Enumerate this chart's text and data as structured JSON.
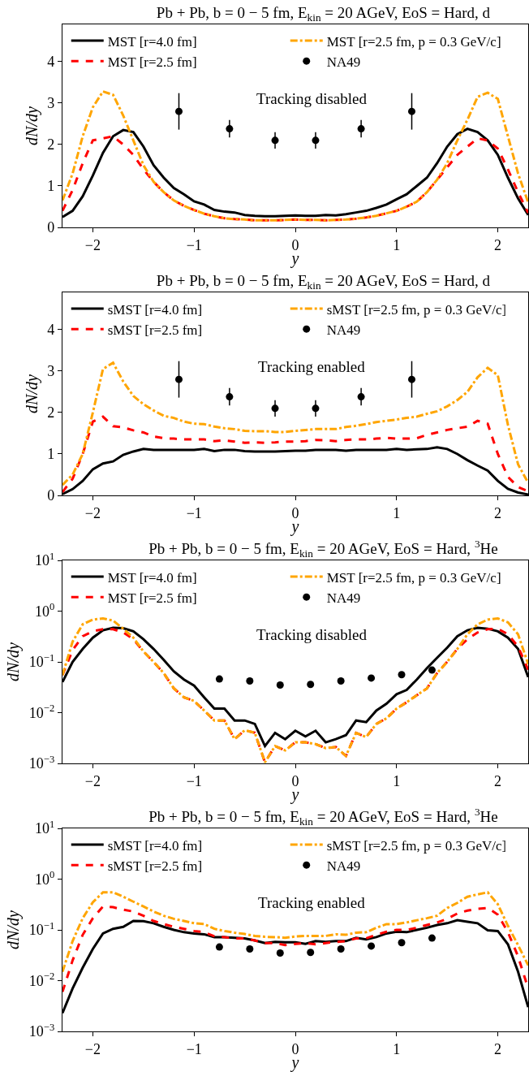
{
  "chart_data": [
    {
      "type": "line",
      "title": "Pb + Pb, b = 0 − 5 fm, E$_{kin}$ = 20 AGeV, EoS = Hard, d",
      "xlabel": "y",
      "ylabel": "dN/dy",
      "annotations": [
        "Tracking disabled"
      ],
      "legend": "top left",
      "xlim": [
        -2.3,
        2.3
      ],
      "xticks": [
        -2,
        -1,
        0,
        1,
        2
      ],
      "ylim": [
        0,
        4.9
      ],
      "yticks": [
        0,
        1,
        2,
        3,
        4
      ],
      "x": [
        -2.3,
        -2.2,
        -2.1,
        -2.0,
        -1.9,
        -1.8,
        -1.7,
        -1.6,
        -1.5,
        -1.4,
        -1.3,
        -1.2,
        -1.1,
        -1.0,
        -0.9,
        -0.8,
        -0.7,
        -0.6,
        -0.5,
        -0.4,
        -0.3,
        -0.2,
        -0.1,
        0,
        0.1,
        0.2,
        0.3,
        0.4,
        0.5,
        0.6,
        0.7,
        0.8,
        0.9,
        1.0,
        1.1,
        1.2,
        1.3,
        1.4,
        1.5,
        1.6,
        1.7,
        1.8,
        1.9,
        2.0,
        2.1,
        2.2,
        2.3
      ],
      "series": [
        {
          "name": "MST [r=4.0 fm]",
          "color": "#000000",
          "line_style": "solid",
          "values": [
            0.25,
            0.4,
            0.75,
            1.25,
            1.8,
            2.2,
            2.35,
            2.3,
            1.95,
            1.5,
            1.2,
            0.95,
            0.8,
            0.63,
            0.55,
            0.42,
            0.38,
            0.36,
            0.3,
            0.28,
            0.27,
            0.27,
            0.28,
            0.29,
            0.28,
            0.28,
            0.3,
            0.29,
            0.32,
            0.36,
            0.4,
            0.47,
            0.55,
            0.68,
            0.8,
            1.0,
            1.2,
            1.55,
            1.95,
            2.25,
            2.38,
            2.3,
            2.1,
            1.75,
            1.2,
            0.7,
            0.3
          ]
        },
        {
          "name": "MST [r=2.5 fm]",
          "color": "#ff0000",
          "line_style": "dashed",
          "values": [
            0.4,
            0.9,
            1.55,
            2.1,
            2.15,
            2.2,
            2.0,
            1.75,
            1.4,
            1.1,
            0.85,
            0.65,
            0.52,
            0.42,
            0.33,
            0.27,
            0.22,
            0.2,
            0.19,
            0.17,
            0.17,
            0.17,
            0.18,
            0.19,
            0.18,
            0.18,
            0.17,
            0.18,
            0.19,
            0.21,
            0.24,
            0.28,
            0.34,
            0.4,
            0.5,
            0.62,
            0.85,
            1.15,
            1.45,
            1.75,
            1.95,
            2.15,
            2.1,
            1.9,
            1.4,
            0.85,
            0.35
          ]
        },
        {
          "name": "MST [r=2.5 fm, p = 0.3 GeV/c]",
          "color": "#ffa500",
          "line_style": "dashdot",
          "values": [
            0.65,
            1.3,
            2.2,
            2.9,
            3.28,
            3.2,
            2.7,
            2.1,
            1.5,
            1.1,
            0.85,
            0.65,
            0.52,
            0.42,
            0.33,
            0.27,
            0.22,
            0.2,
            0.19,
            0.17,
            0.17,
            0.17,
            0.18,
            0.19,
            0.18,
            0.18,
            0.17,
            0.18,
            0.19,
            0.21,
            0.24,
            0.28,
            0.34,
            0.4,
            0.5,
            0.62,
            0.85,
            1.15,
            1.55,
            2.1,
            2.6,
            3.15,
            3.25,
            3.1,
            2.2,
            1.3,
            0.6
          ]
        },
        {
          "name": "NA49",
          "type": "scatter",
          "marker": "circle",
          "color": "#000000",
          "x": [
            -1.15,
            -0.65,
            -0.2,
            0.2,
            0.65,
            1.15
          ],
          "values": [
            2.8,
            2.38,
            2.1,
            2.1,
            2.38,
            2.8
          ],
          "errors": [
            0.44,
            0.21,
            0.2,
            0.2,
            0.21,
            0.44
          ]
        }
      ]
    },
    {
      "type": "line",
      "title": "Pb + Pb, b = 0 − 5 fm, E$_{kin}$ = 20 AGeV, EoS = Hard, d",
      "xlabel": "y",
      "ylabel": "dN/dy",
      "annotations": [
        "Tracking enabled"
      ],
      "legend": "top left",
      "xlim": [
        -2.3,
        2.3
      ],
      "xticks": [
        -2,
        -1,
        0,
        1,
        2
      ],
      "ylim": [
        0,
        4.9
      ],
      "yticks": [
        0,
        1,
        2,
        3,
        4
      ],
      "x": [
        -2.3,
        -2.2,
        -2.1,
        -2.0,
        -1.9,
        -1.8,
        -1.7,
        -1.6,
        -1.5,
        -1.4,
        -1.3,
        -1.2,
        -1.1,
        -1.0,
        -0.9,
        -0.8,
        -0.7,
        -0.6,
        -0.5,
        -0.4,
        -0.3,
        -0.2,
        -0.1,
        0,
        0.1,
        0.2,
        0.3,
        0.4,
        0.5,
        0.6,
        0.7,
        0.8,
        0.9,
        1.0,
        1.1,
        1.2,
        1.3,
        1.4,
        1.5,
        1.6,
        1.7,
        1.8,
        1.9,
        2.0,
        2.1,
        2.2,
        2.3
      ],
      "series": [
        {
          "name": "sMST [r=4.0 fm]",
          "color": "#000000",
          "line_style": "solid",
          "values": [
            0.03,
            0.15,
            0.35,
            0.63,
            0.77,
            0.82,
            0.98,
            1.06,
            1.12,
            1.1,
            1.1,
            1.1,
            1.1,
            1.1,
            1.12,
            1.07,
            1.1,
            1.1,
            1.07,
            1.06,
            1.06,
            1.06,
            1.07,
            1.08,
            1.08,
            1.1,
            1.1,
            1.1,
            1.08,
            1.1,
            1.1,
            1.1,
            1.1,
            1.12,
            1.1,
            1.11,
            1.12,
            1.16,
            1.12,
            1.0,
            0.85,
            0.72,
            0.6,
            0.35,
            0.16,
            0.07,
            0.02
          ]
        },
        {
          "name": "sMST [r=2.5 fm]",
          "color": "#ff0000",
          "line_style": "dashed",
          "values": [
            0.08,
            0.4,
            1.0,
            1.78,
            1.9,
            1.67,
            1.64,
            1.57,
            1.52,
            1.42,
            1.38,
            1.37,
            1.35,
            1.35,
            1.35,
            1.31,
            1.33,
            1.3,
            1.27,
            1.28,
            1.27,
            1.28,
            1.3,
            1.3,
            1.31,
            1.34,
            1.33,
            1.31,
            1.34,
            1.35,
            1.35,
            1.37,
            1.39,
            1.37,
            1.37,
            1.38,
            1.46,
            1.52,
            1.58,
            1.62,
            1.66,
            1.8,
            1.73,
            1.0,
            0.45,
            0.2,
            0.1
          ]
        },
        {
          "name": "sMST [r=2.5 fm, p = 0.3 GeV/c]",
          "color": "#ffa500",
          "line_style": "dashdot",
          "values": [
            0.25,
            0.5,
            1.0,
            2.0,
            3.05,
            3.2,
            2.75,
            2.4,
            2.2,
            2.05,
            1.92,
            1.87,
            1.78,
            1.73,
            1.72,
            1.66,
            1.62,
            1.6,
            1.56,
            1.55,
            1.55,
            1.53,
            1.53,
            1.56,
            1.58,
            1.6,
            1.6,
            1.6,
            1.65,
            1.68,
            1.72,
            1.77,
            1.8,
            1.83,
            1.87,
            1.9,
            1.97,
            2.03,
            2.15,
            2.3,
            2.5,
            2.85,
            3.08,
            2.9,
            1.7,
            0.75,
            0.3
          ]
        },
        {
          "name": "NA49",
          "type": "scatter",
          "marker": "circle",
          "color": "#000000",
          "x": [
            -1.15,
            -0.65,
            -0.2,
            0.2,
            0.65,
            1.15
          ],
          "values": [
            2.8,
            2.38,
            2.1,
            2.1,
            2.38,
            2.8
          ],
          "errors": [
            0.44,
            0.21,
            0.2,
            0.2,
            0.21,
            0.44
          ]
        }
      ]
    },
    {
      "type": "line",
      "title": "Pb + Pb, b = 0 − 5 fm, E$_{kin}$ = 20 AGeV, EoS = Hard, $^{3}$He",
      "xlabel": "y",
      "ylabel": "dN/dy",
      "annotations": [
        "Tracking disabled"
      ],
      "legend": "top left",
      "log": "y",
      "xlim": [
        -2.3,
        2.3
      ],
      "xticks": [
        -2,
        -1,
        0,
        1,
        2
      ],
      "ylim": [
        0.001,
        10
      ],
      "yticks": [
        {
          "value": 0.001,
          "label": "10$^{−3}$"
        },
        {
          "value": 0.01,
          "label": "10$^{−2}$"
        },
        {
          "value": 0.1,
          "label": "10$^{−1}$"
        },
        {
          "value": 1,
          "label": "10$^{0}$"
        },
        {
          "value": 10,
          "label": "10$^{1}$"
        }
      ],
      "x": [
        -2.3,
        -2.2,
        -2.1,
        -2.0,
        -1.9,
        -1.8,
        -1.7,
        -1.6,
        -1.5,
        -1.4,
        -1.3,
        -1.2,
        -1.1,
        -1.0,
        -0.9,
        -0.8,
        -0.7,
        -0.6,
        -0.5,
        -0.4,
        -0.3,
        -0.2,
        -0.1,
        0,
        0.1,
        0.2,
        0.3,
        0.4,
        0.5,
        0.6,
        0.7,
        0.8,
        0.9,
        1.0,
        1.1,
        1.2,
        1.3,
        1.4,
        1.5,
        1.6,
        1.7,
        1.8,
        1.9,
        2.0,
        2.1,
        2.2,
        2.3
      ],
      "series": [
        {
          "name": "MST [r=4.0 fm]",
          "color": "#000000",
          "line_style": "solid",
          "values": [
            0.04,
            0.1,
            0.18,
            0.3,
            0.42,
            0.47,
            0.46,
            0.4,
            0.28,
            0.18,
            0.11,
            0.065,
            0.045,
            0.034,
            0.02,
            0.012,
            0.012,
            0.007,
            0.007,
            0.006,
            0.0022,
            0.004,
            0.003,
            0.0044,
            0.0034,
            0.0044,
            0.0026,
            0.003,
            0.0036,
            0.007,
            0.0065,
            0.011,
            0.015,
            0.023,
            0.028,
            0.045,
            0.075,
            0.12,
            0.19,
            0.32,
            0.42,
            0.47,
            0.45,
            0.4,
            0.3,
            0.18,
            0.05
          ]
        },
        {
          "name": "MST [r=2.5 fm]",
          "color": "#ff0000",
          "line_style": "dashed",
          "values": [
            0.055,
            0.17,
            0.32,
            0.4,
            0.44,
            0.44,
            0.38,
            0.28,
            0.16,
            0.1,
            0.06,
            0.03,
            0.02,
            0.017,
            0.011,
            0.007,
            0.007,
            0.003,
            0.0045,
            0.004,
            0.00105,
            0.0022,
            0.0018,
            0.0026,
            0.0026,
            0.0024,
            0.002,
            0.0021,
            0.0014,
            0.004,
            0.0033,
            0.006,
            0.0077,
            0.012,
            0.016,
            0.022,
            0.03,
            0.06,
            0.1,
            0.18,
            0.28,
            0.38,
            0.44,
            0.45,
            0.35,
            0.2,
            0.07
          ]
        },
        {
          "name": "MST [r=2.5 fm, p = 0.3 GeV/c]",
          "color": "#ffa500",
          "line_style": "dashdot",
          "values": [
            0.055,
            0.25,
            0.55,
            0.68,
            0.72,
            0.65,
            0.45,
            0.3,
            0.16,
            0.1,
            0.06,
            0.03,
            0.02,
            0.017,
            0.011,
            0.007,
            0.007,
            0.003,
            0.0045,
            0.004,
            0.00105,
            0.0022,
            0.0018,
            0.0026,
            0.0026,
            0.0024,
            0.002,
            0.0021,
            0.0014,
            0.004,
            0.0033,
            0.006,
            0.0077,
            0.012,
            0.016,
            0.022,
            0.03,
            0.06,
            0.1,
            0.18,
            0.35,
            0.55,
            0.68,
            0.72,
            0.6,
            0.35,
            0.09
          ]
        },
        {
          "name": "NA49",
          "type": "scatter",
          "marker": "circle",
          "color": "#000000",
          "x": [
            -0.75,
            -0.45,
            -0.15,
            0.15,
            0.45,
            0.75,
            1.05,
            1.35
          ],
          "values": [
            0.046,
            0.042,
            0.035,
            0.036,
            0.042,
            0.048,
            0.056,
            0.069
          ]
        }
      ]
    },
    {
      "type": "line",
      "title": "Pb + Pb, b = 0 − 5 fm, E$_{kin}$ = 20 AGeV, EoS = Hard, $^{3}$He",
      "xlabel": "y",
      "ylabel": "dN/dy",
      "annotations": [
        "Tracking enabled"
      ],
      "legend": "top left",
      "log": "y",
      "xlim": [
        -2.3,
        2.3
      ],
      "xticks": [
        -2,
        -1,
        0,
        1,
        2
      ],
      "ylim": [
        0.001,
        10
      ],
      "yticks": [
        {
          "value": 0.001,
          "label": "10$^{−3}$"
        },
        {
          "value": 0.01,
          "label": "10$^{−2}$"
        },
        {
          "value": 0.1,
          "label": "10$^{−1}$"
        },
        {
          "value": 1,
          "label": "10$^{0}$"
        },
        {
          "value": 10,
          "label": "10$^{1}$"
        }
      ],
      "x": [
        -2.3,
        -2.2,
        -2.1,
        -2.0,
        -1.9,
        -1.8,
        -1.7,
        -1.6,
        -1.5,
        -1.4,
        -1.3,
        -1.2,
        -1.1,
        -1.0,
        -0.9,
        -0.8,
        -0.7,
        -0.6,
        -0.5,
        -0.4,
        -0.3,
        -0.2,
        -0.1,
        0,
        0.1,
        0.2,
        0.3,
        0.4,
        0.5,
        0.6,
        0.7,
        0.8,
        0.9,
        1.0,
        1.1,
        1.2,
        1.3,
        1.4,
        1.5,
        1.6,
        1.7,
        1.8,
        1.9,
        2.0,
        2.1,
        2.2,
        2.3
      ],
      "series": [
        {
          "name": "sMST [r=4.0 fm]",
          "color": "#000000",
          "line_style": "solid",
          "values": [
            0.0023,
            0.007,
            0.018,
            0.042,
            0.085,
            0.105,
            0.115,
            0.15,
            0.148,
            0.135,
            0.115,
            0.1,
            0.09,
            0.085,
            0.082,
            0.072,
            0.072,
            0.07,
            0.068,
            0.062,
            0.055,
            0.058,
            0.057,
            0.057,
            0.053,
            0.06,
            0.058,
            0.06,
            0.06,
            0.07,
            0.065,
            0.072,
            0.085,
            0.092,
            0.09,
            0.1,
            0.11,
            0.125,
            0.135,
            0.155,
            0.145,
            0.135,
            0.098,
            0.095,
            0.052,
            0.015,
            0.003
          ]
        },
        {
          "name": "sMST [r=2.5 fm]",
          "color": "#ff0000",
          "line_style": "dashed",
          "values": [
            0.006,
            0.025,
            0.08,
            0.17,
            0.29,
            0.28,
            0.25,
            0.23,
            0.19,
            0.15,
            0.13,
            0.115,
            0.105,
            0.095,
            0.09,
            0.075,
            0.072,
            0.068,
            0.068,
            0.062,
            0.055,
            0.055,
            0.05,
            0.053,
            0.055,
            0.052,
            0.055,
            0.058,
            0.06,
            0.068,
            0.068,
            0.08,
            0.092,
            0.1,
            0.1,
            0.11,
            0.125,
            0.14,
            0.165,
            0.21,
            0.24,
            0.26,
            0.27,
            0.2,
            0.09,
            0.03,
            0.007
          ]
        },
        {
          "name": "sMST [r=2.5 fm, p = 0.3 GeV/c]",
          "color": "#ffa500",
          "line_style": "dashdot",
          "values": [
            0.015,
            0.06,
            0.17,
            0.35,
            0.55,
            0.55,
            0.45,
            0.36,
            0.29,
            0.23,
            0.19,
            0.165,
            0.15,
            0.135,
            0.13,
            0.105,
            0.095,
            0.088,
            0.083,
            0.076,
            0.073,
            0.072,
            0.07,
            0.074,
            0.076,
            0.076,
            0.076,
            0.082,
            0.08,
            0.088,
            0.09,
            0.11,
            0.13,
            0.13,
            0.14,
            0.155,
            0.17,
            0.19,
            0.27,
            0.34,
            0.45,
            0.5,
            0.55,
            0.32,
            0.12,
            0.05,
            0.02
          ]
        },
        {
          "name": "NA49",
          "type": "scatter",
          "marker": "circle",
          "color": "#000000",
          "x": [
            -0.75,
            -0.45,
            -0.15,
            0.15,
            0.45,
            0.75,
            1.05,
            1.35
          ],
          "values": [
            0.046,
            0.042,
            0.035,
            0.036,
            0.042,
            0.048,
            0.056,
            0.069
          ]
        }
      ]
    }
  ]
}
